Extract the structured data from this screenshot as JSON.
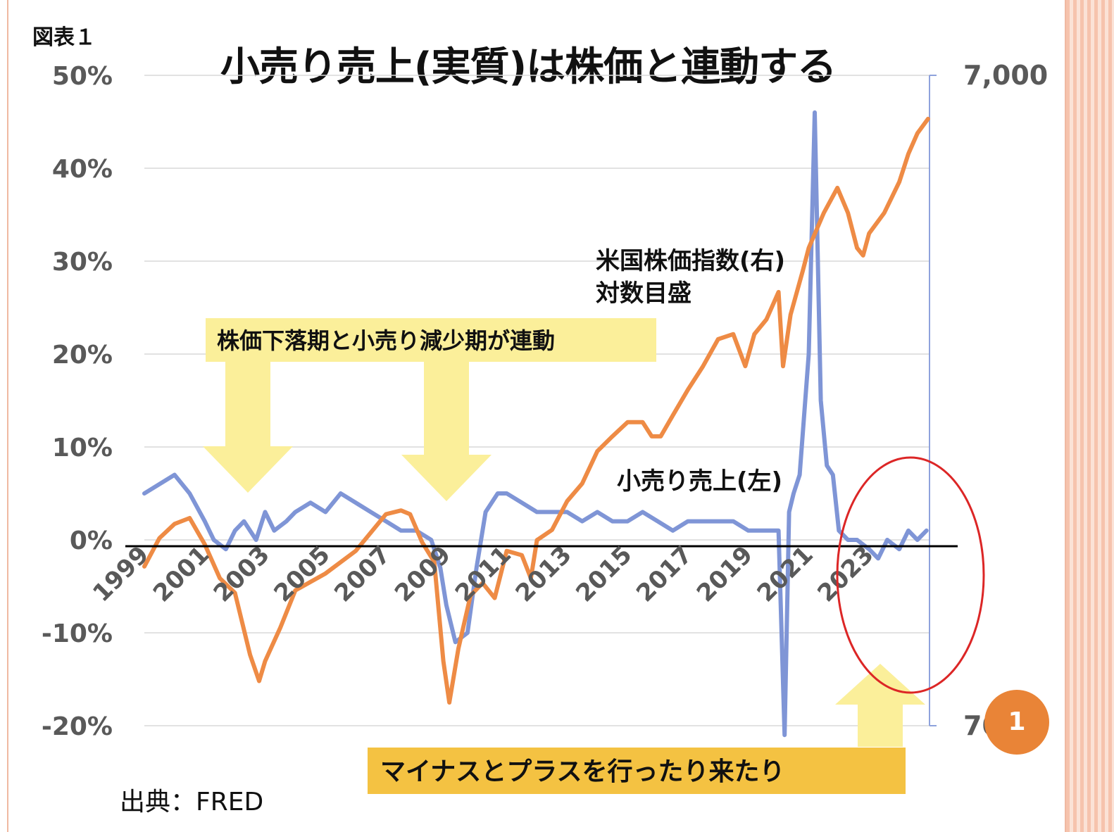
{
  "figure_label": "図表１",
  "title": "小売り売上(実質)は株価と連動する",
  "source": "出典：FRED",
  "page_number": "1",
  "annotations": {
    "top_box": "株価下落期と小売り減少期が連動",
    "bottom_box": "マイナスとプラスを行ったり来たり",
    "stock_label_line1": "米国株価指数(右)",
    "stock_label_line2": "対数目盛",
    "retail_label": "小売り売上(左)"
  },
  "colors": {
    "retail": "#7f95d6",
    "stock": "#ee8b45",
    "highlight_box": "#fbef9a",
    "bottom_box": "#f4c242",
    "circle": "#dc2626",
    "grid": "#d9d9d9",
    "right_axis": "#8ea2dc"
  },
  "chart_data": {
    "type": "line",
    "title": "小売り売上(実質)は株価と連動する",
    "x_ticks": [
      "1999",
      "2001",
      "2003",
      "2005",
      "2007",
      "2009",
      "2011",
      "2013",
      "2015",
      "2017",
      "2019",
      "2021",
      "2023"
    ],
    "left_axis": {
      "tick_labels": [
        "50%",
        "40%",
        "30%",
        "20%",
        "10%",
        "0%",
        "-10%",
        "-20%"
      ],
      "range": [
        -20,
        50
      ],
      "unit": "%"
    },
    "right_axis": {
      "tick_labels": [
        "7,000",
        "700"
      ],
      "range": [
        700,
        7000
      ],
      "scale": "log"
    },
    "grid": true,
    "series": [
      {
        "name": "小売り売上(左)",
        "axis": "left",
        "color": "#7f95d6",
        "x": [
          1999.0,
          1999.5,
          2000.0,
          2000.5,
          2001.0,
          2001.3,
          2001.7,
          2002.0,
          2002.3,
          2002.7,
          2003.0,
          2003.3,
          2003.7,
          2004.0,
          2004.5,
          2005.0,
          2005.5,
          2006.0,
          2006.5,
          2007.0,
          2007.5,
          2008.0,
          2008.5,
          2008.8,
          2009.0,
          2009.3,
          2009.7,
          2010.0,
          2010.3,
          2010.7,
          2011.0,
          2011.5,
          2012.0,
          2012.5,
          2013.0,
          2013.5,
          2014.0,
          2014.5,
          2015.0,
          2015.5,
          2016.0,
          2016.5,
          2017.0,
          2017.5,
          2018.0,
          2018.5,
          2019.0,
          2019.5,
          2020.0,
          2020.2,
          2020.35,
          2020.5,
          2020.7,
          2021.0,
          2021.2,
          2021.4,
          2021.6,
          2021.8,
          2022.0,
          2022.3,
          2022.6,
          2023.0,
          2023.3,
          2023.6,
          2024.0,
          2024.3,
          2024.6,
          2024.9
        ],
        "values": [
          5,
          6,
          7,
          5,
          2,
          0,
          -1,
          1,
          2,
          0,
          3,
          1,
          2,
          3,
          4,
          3,
          5,
          4,
          3,
          2,
          1,
          1,
          0,
          -3,
          -7,
          -11,
          -10,
          -3,
          3,
          5,
          5,
          4,
          3,
          3,
          3,
          2,
          3,
          2,
          2,
          3,
          2,
          1,
          2,
          2,
          2,
          2,
          1,
          1,
          1,
          -21,
          3,
          5,
          7,
          20,
          46,
          15,
          8,
          7,
          1,
          0,
          0,
          -1,
          -2,
          0,
          -1,
          1,
          0,
          1
        ]
      },
      {
        "name": "米国株価指数(右)",
        "axis": "right",
        "color": "#ee8b45",
        "x": [
          1999.0,
          1999.5,
          2000.0,
          2000.5,
          2001.0,
          2001.5,
          2002.0,
          2002.5,
          2002.8,
          2003.0,
          2003.5,
          2004.0,
          2005.0,
          2006.0,
          2007.0,
          2007.5,
          2007.8,
          2008.2,
          2008.6,
          2008.9,
          2009.1,
          2009.4,
          2009.8,
          2010.2,
          2010.6,
          2011.0,
          2011.5,
          2011.8,
          2012.0,
          2012.5,
          2013.0,
          2013.5,
          2014.0,
          2014.5,
          2015.0,
          2015.5,
          2015.8,
          2016.1,
          2016.5,
          2017.0,
          2017.5,
          2018.0,
          2018.5,
          2018.9,
          2019.2,
          2019.6,
          2020.0,
          2020.15,
          2020.4,
          2020.8,
          2021.0,
          2021.5,
          2021.95,
          2022.3,
          2022.6,
          2022.8,
          2023.0,
          2023.5,
          2024.0,
          2024.3,
          2024.6,
          2024.95
        ],
        "values": [
          1230,
          1360,
          1430,
          1460,
          1330,
          1180,
          1120,
          900,
          820,
          880,
          990,
          1130,
          1200,
          1300,
          1480,
          1500,
          1480,
          1340,
          1250,
          880,
          760,
          920,
          1110,
          1160,
          1100,
          1300,
          1280,
          1180,
          1350,
          1400,
          1550,
          1650,
          1850,
          1950,
          2050,
          2050,
          1950,
          1950,
          2100,
          2300,
          2500,
          2750,
          2800,
          2500,
          2800,
          2950,
          3250,
          2500,
          3000,
          3500,
          3800,
          4300,
          4700,
          4300,
          3800,
          3700,
          4000,
          4300,
          4800,
          5300,
          5700,
          6000
        ]
      }
    ]
  }
}
